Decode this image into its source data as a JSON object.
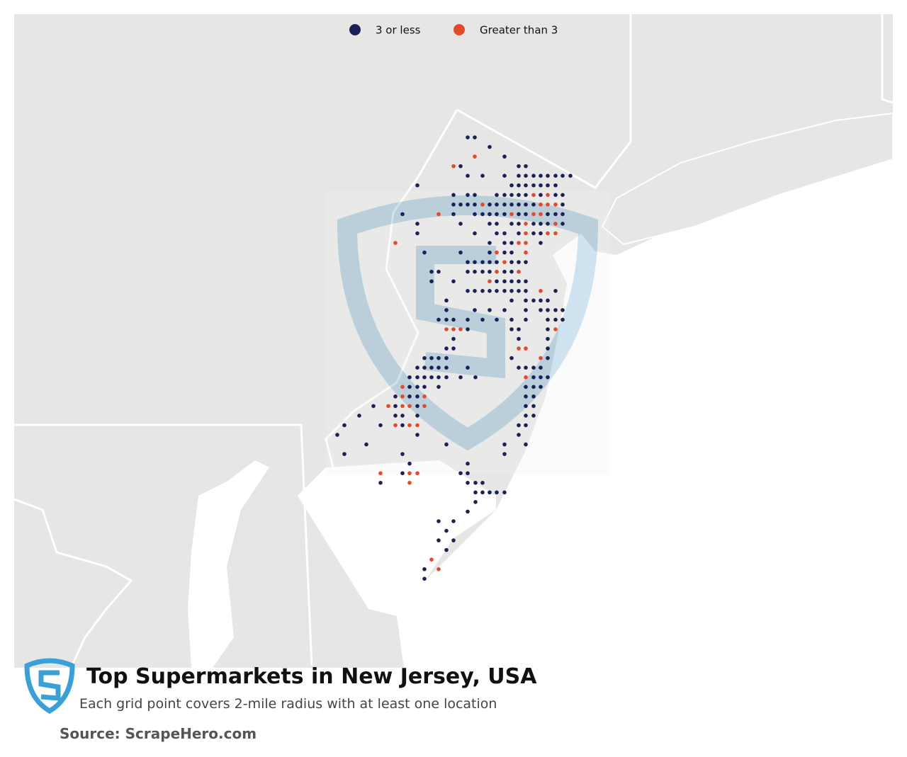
{
  "legend": {
    "items": [
      {
        "label": "3 or less",
        "color": "#1b2157"
      },
      {
        "label": "Greater than 3",
        "color": "#e4492a"
      }
    ]
  },
  "title": "Top Supermarkets in New Jersey, USA",
  "subtitle": "Each grid point covers 2-mile radius with at least one location",
  "source": "Source: ScrapeHero.com"
}
